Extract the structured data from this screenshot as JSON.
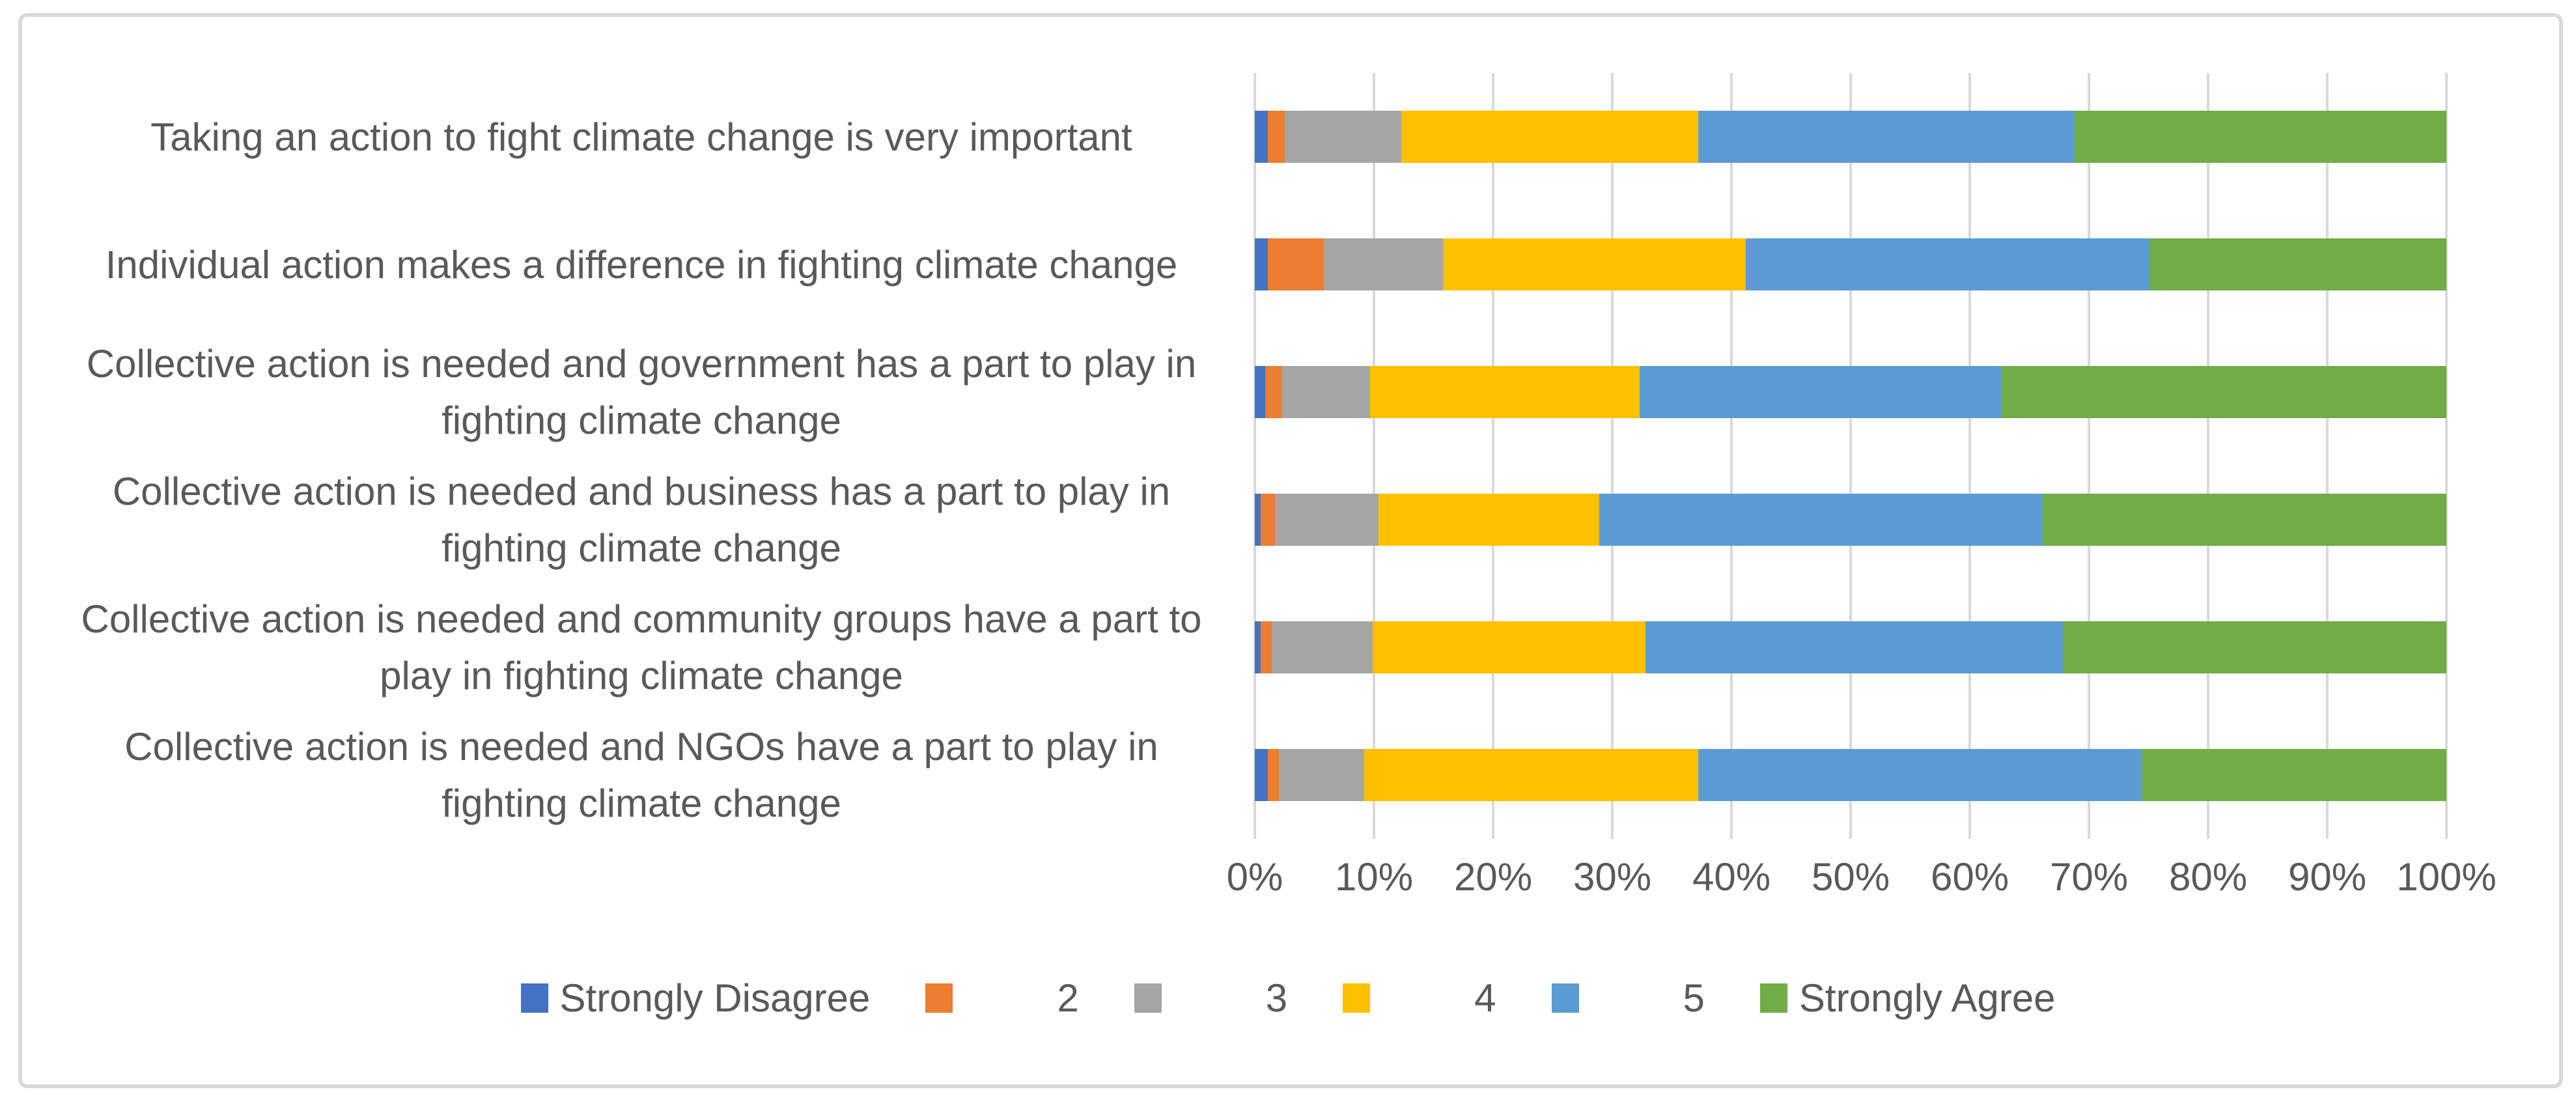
{
  "chart_data": {
    "type": "bar",
    "variant": "horizontal-stacked-100pct",
    "title": "",
    "xlabel": "",
    "ylabel": "",
    "xlim": [
      0,
      100
    ],
    "grid": "vertical",
    "legend_position": "bottom",
    "x_ticks": [
      "0%",
      "10%",
      "20%",
      "30%",
      "40%",
      "50%",
      "60%",
      "70%",
      "80%",
      "90%",
      "100%"
    ],
    "categories": [
      "Taking an action to fight climate change is very important",
      "Individual action makes a difference in fighting climate change",
      "Collective action is needed and government has a part to play in fighting climate change",
      "Collective action is needed and business has a part to play in fighting climate change",
      "Collective action is needed and community groups have a part to play in fighting climate change",
      "Collective action is needed and NGOs have a part to play in fighting climate change"
    ],
    "series": [
      {
        "name": "Strongly Disagree",
        "color": "#4472C4",
        "values": [
          1.1,
          1.1,
          0.9,
          0.5,
          0.5,
          1.1
        ]
      },
      {
        "name": "2",
        "color": "#ED7D31",
        "values": [
          1.4,
          4.7,
          1.4,
          1.2,
          0.9,
          0.9
        ]
      },
      {
        "name": "3",
        "color": "#A5A5A5",
        "values": [
          9.8,
          10.0,
          7.4,
          8.7,
          8.5,
          7.2
        ]
      },
      {
        "name": "4",
        "color": "#FFC000",
        "values": [
          24.9,
          25.4,
          22.6,
          18.5,
          22.9,
          28.0
        ]
      },
      {
        "name": "5",
        "color": "#5B9BD5",
        "values": [
          31.6,
          33.9,
          30.3,
          37.2,
          35.0,
          37.2
        ]
      },
      {
        "name": "Strongly Agree",
        "color": "#70AD47",
        "values": [
          31.2,
          24.9,
          37.4,
          33.9,
          32.2,
          25.6
        ]
      }
    ]
  },
  "style_colors": {
    "gridline": "#D9D9D9",
    "frame_border": "#D9D9D9",
    "text": "#595959",
    "background": "#FFFFFF"
  }
}
